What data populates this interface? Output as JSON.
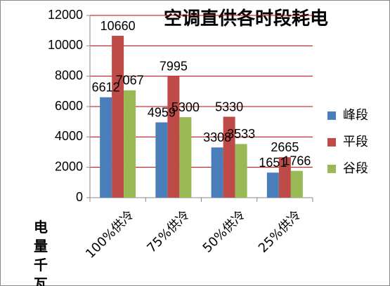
{
  "chart_data": {
    "type": "bar",
    "title": "空调直供各时段耗电",
    "y_label": "电量千瓦",
    "categories": [
      "100%供冷",
      "75%供冷",
      "50%供冷",
      "25%供冷"
    ],
    "series": [
      {
        "name": "峰段",
        "color": "#4a7ebb",
        "values": [
          6612,
          4959,
          3308,
          1651
        ]
      },
      {
        "name": "平段",
        "color": "#be4b48",
        "values": [
          10660,
          7995,
          5330,
          2665
        ]
      },
      {
        "name": "谷段",
        "color": "#98b954",
        "values": [
          7067,
          5300,
          3533,
          1766
        ]
      }
    ],
    "ylim": [
      0,
      12000
    ],
    "yticks": [
      0,
      2000,
      4000,
      6000,
      8000,
      10000,
      12000
    ],
    "grid": true,
    "grid_color": "#c00000",
    "legend": "right"
  }
}
